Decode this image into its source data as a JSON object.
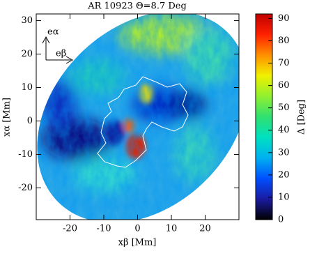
{
  "chart_data": {
    "type": "image",
    "title": "AR 10923 Θ=8.7 Deg",
    "xlabel": "xβ [Mm]",
    "ylabel": "xα [Mm]",
    "xlim": [
      -30,
      30
    ],
    "ylim": [
      -29.5,
      32
    ],
    "xticks": [
      -20,
      -10,
      0,
      10,
      20
    ],
    "yticks": [
      -20,
      -10,
      0,
      10,
      20,
      30
    ],
    "annotations": [
      "eα",
      "eβ"
    ],
    "colorbar": {
      "label": "Δ [Deg]",
      "lim": [
        0,
        92
      ],
      "ticks": [
        0,
        10,
        20,
        30,
        40,
        50,
        60,
        70,
        80,
        90
      ],
      "colors": [
        "#000000",
        "#1a1aa0",
        "#0050ff",
        "#00b0f0",
        "#00e0c0",
        "#30e070",
        "#90f030",
        "#f0f000",
        "#ff9000",
        "#ff2000",
        "#c00000"
      ]
    }
  }
}
